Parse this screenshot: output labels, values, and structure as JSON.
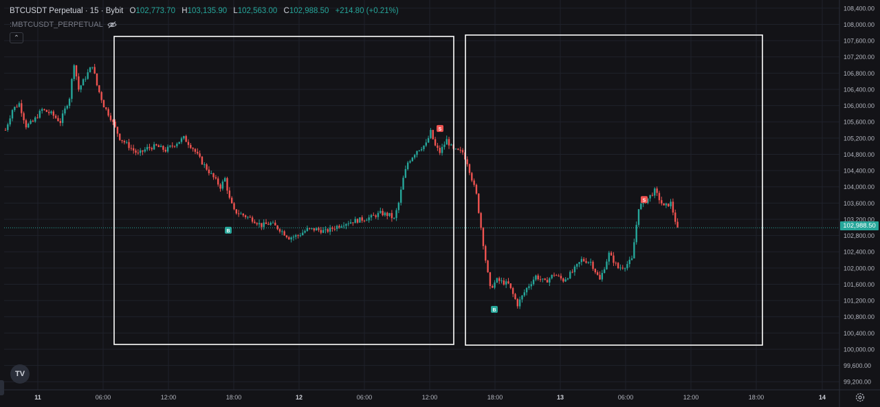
{
  "header": {
    "symbol": "BTCUSDT Perpetual · 15 · Bybit",
    "open_label": "O",
    "open": "102,773.70",
    "high_label": "H",
    "high": "103,135.90",
    "low_label": "L",
    "low": "102,563.00",
    "close_label": "C",
    "close": "102,988.50",
    "change": "+214.80 (+0.21%)"
  },
  "indicator": {
    "label": ":MBTCUSDT_PERPETUAL"
  },
  "logo_text": "TV",
  "current_price_label": "102,988.50",
  "colors": {
    "up": "#26a69a",
    "down": "#ef5350",
    "background": "#131317",
    "grid": "#1f222b",
    "text": "#b2b5be"
  },
  "chart_data": {
    "type": "candlestick",
    "title": "BTCUSDT Perpetual · 15 · Bybit",
    "ylim": [
      99000,
      108600
    ],
    "y_ticks": [
      "99,200.00",
      "99,600.00",
      "100,000.00",
      "100,400.00",
      "100,800.00",
      "101,200.00",
      "101,600.00",
      "102,000.00",
      "102,400.00",
      "102,800.00",
      "103,200.00",
      "103,600.00",
      "104,000.00",
      "104,400.00",
      "104,800.00",
      "105,200.00",
      "105,600.00",
      "106,000.00",
      "106,400.00",
      "106,800.00",
      "107,200.00",
      "107,600.00",
      "108,000.00",
      "108,400.00"
    ],
    "x_ticks": [
      "11",
      "06:00",
      "12:00",
      "18:00",
      "12",
      "06:00",
      "12:00",
      "18:00",
      "13",
      "06:00",
      "12:00",
      "18:00",
      "14"
    ],
    "x_ticks_bold": [
      "11",
      "12",
      "13",
      "14"
    ],
    "current_price": 102988.5,
    "path_points": [
      [
        0,
        105400
      ],
      [
        3,
        105900
      ],
      [
        6,
        106050
      ],
      [
        9,
        105500
      ],
      [
        12,
        105600
      ],
      [
        16,
        105900
      ],
      [
        20,
        105800
      ],
      [
        24,
        105600
      ],
      [
        28,
        106200
      ],
      [
        30,
        107050
      ],
      [
        32,
        106400
      ],
      [
        35,
        106700
      ],
      [
        38,
        107000
      ],
      [
        40,
        106500
      ],
      [
        43,
        106000
      ],
      [
        46,
        105700
      ],
      [
        50,
        105200
      ],
      [
        54,
        105000
      ],
      [
        58,
        104800
      ],
      [
        62,
        104950
      ],
      [
        66,
        105000
      ],
      [
        70,
        104900
      ],
      [
        74,
        105050
      ],
      [
        78,
        105200
      ],
      [
        82,
        104950
      ],
      [
        86,
        104600
      ],
      [
        90,
        104300
      ],
      [
        94,
        104000
      ],
      [
        96,
        104200
      ],
      [
        98,
        103700
      ],
      [
        100,
        103400
      ],
      [
        104,
        103300
      ],
      [
        108,
        103200
      ],
      [
        112,
        103050
      ],
      [
        116,
        103100
      ],
      [
        120,
        102950
      ],
      [
        124,
        102750
      ],
      [
        128,
        102800
      ],
      [
        132,
        102950
      ],
      [
        136,
        102950
      ],
      [
        140,
        102900
      ],
      [
        144,
        103000
      ],
      [
        148,
        103100
      ],
      [
        152,
        103150
      ],
      [
        156,
        103200
      ],
      [
        160,
        103250
      ],
      [
        164,
        103350
      ],
      [
        168,
        103300
      ],
      [
        170,
        103200
      ],
      [
        172,
        103600
      ],
      [
        174,
        104200
      ],
      [
        176,
        104600
      ],
      [
        180,
        104900
      ],
      [
        184,
        105050
      ],
      [
        186,
        105350
      ],
      [
        188,
        105000
      ],
      [
        190,
        104850
      ],
      [
        193,
        105150
      ],
      [
        196,
        104900
      ],
      [
        200,
        104850
      ],
      [
        202,
        104600
      ],
      [
        206,
        103800
      ],
      [
        210,
        102200
      ],
      [
        212,
        101500
      ],
      [
        215,
        101700
      ],
      [
        220,
        101600
      ],
      [
        224,
        101100
      ],
      [
        228,
        101500
      ],
      [
        232,
        101800
      ],
      [
        236,
        101650
      ],
      [
        240,
        101850
      ],
      [
        244,
        101700
      ],
      [
        248,
        101900
      ],
      [
        252,
        102200
      ],
      [
        256,
        102150
      ],
      [
        260,
        101700
      ],
      [
        264,
        102350
      ],
      [
        268,
        102000
      ],
      [
        271,
        102050
      ],
      [
        274,
        102200
      ],
      [
        277,
        103500
      ],
      [
        280,
        103650
      ],
      [
        284,
        103900
      ],
      [
        288,
        103500
      ],
      [
        291,
        103600
      ],
      [
        294,
        102950
      ]
    ],
    "buy_markers": [
      [
        332,
        103100
      ],
      [
        719,
        101150
      ]
    ],
    "sell_markers": [
      [
        640,
        105300
      ],
      [
        937,
        103550
      ]
    ],
    "highlight_boxes": 2
  }
}
